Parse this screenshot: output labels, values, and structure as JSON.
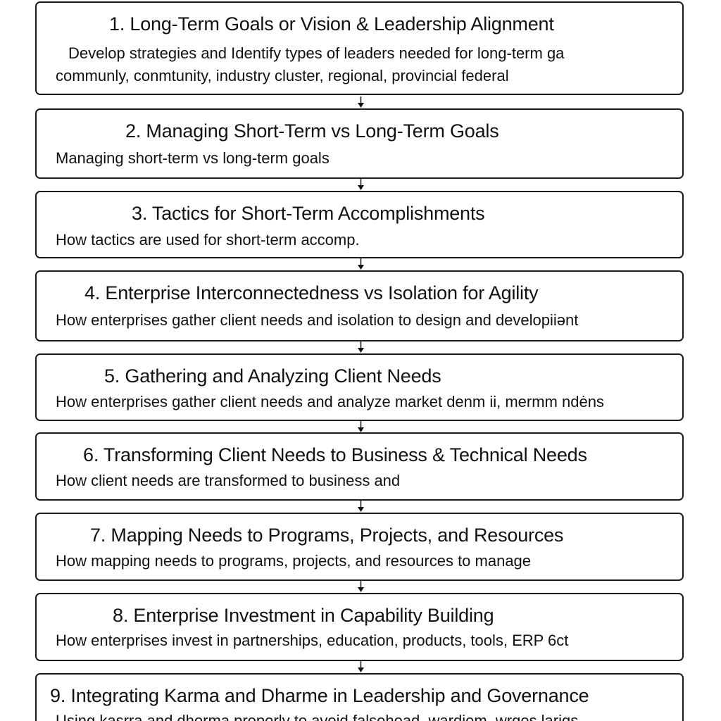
{
  "steps": [
    {
      "title": "1. Long-Term Goals or Vision & Leadership Alignment",
      "description": [
        "Develop strategies and Identify types of leaders needed for long-term ga",
        "communly, conmtunity, industry cluster, regional, provincial federal"
      ]
    },
    {
      "title": "2. Managing Short-Term vs Long-Term Goals",
      "description": [
        "Managing short-term vs long-term goals"
      ]
    },
    {
      "title": "3. Tactics for Short-Term Accomplishments",
      "description": [
        "How tactics are used for short-term accomp."
      ]
    },
    {
      "title": "4. Enterprise Interconnectedness vs Isolation for Agility",
      "description": [
        "How enterprises gather client needs and isolation to design and developiiənt"
      ]
    },
    {
      "title": "5. Gathering and Analyzing Client Needs",
      "description": [
        "How enterprises gather client needs and analyze market denm ii, mermm ndėns"
      ]
    },
    {
      "title": "6. Transforming Client Needs to Business & Technical Needs",
      "description": [
        "How client needs are transformed to business and"
      ]
    },
    {
      "title": "7. Mapping Needs to Programs, Projects, and Resources",
      "description": [
        "How mapping needs to programs, projects, and resources to manage"
      ]
    },
    {
      "title": "8. Enterprise Investment in Capability Building",
      "description": [
        "How enterprises invest in partnerships, education, products, tools, ERP 6ct"
      ]
    },
    {
      "title": "9. Integrating Karma and Dharme in Leadership and Governance",
      "description": [
        "Using kasrra and dhorma properly to avoid falsehoad, wardiem, wrges larigs"
      ]
    }
  ]
}
